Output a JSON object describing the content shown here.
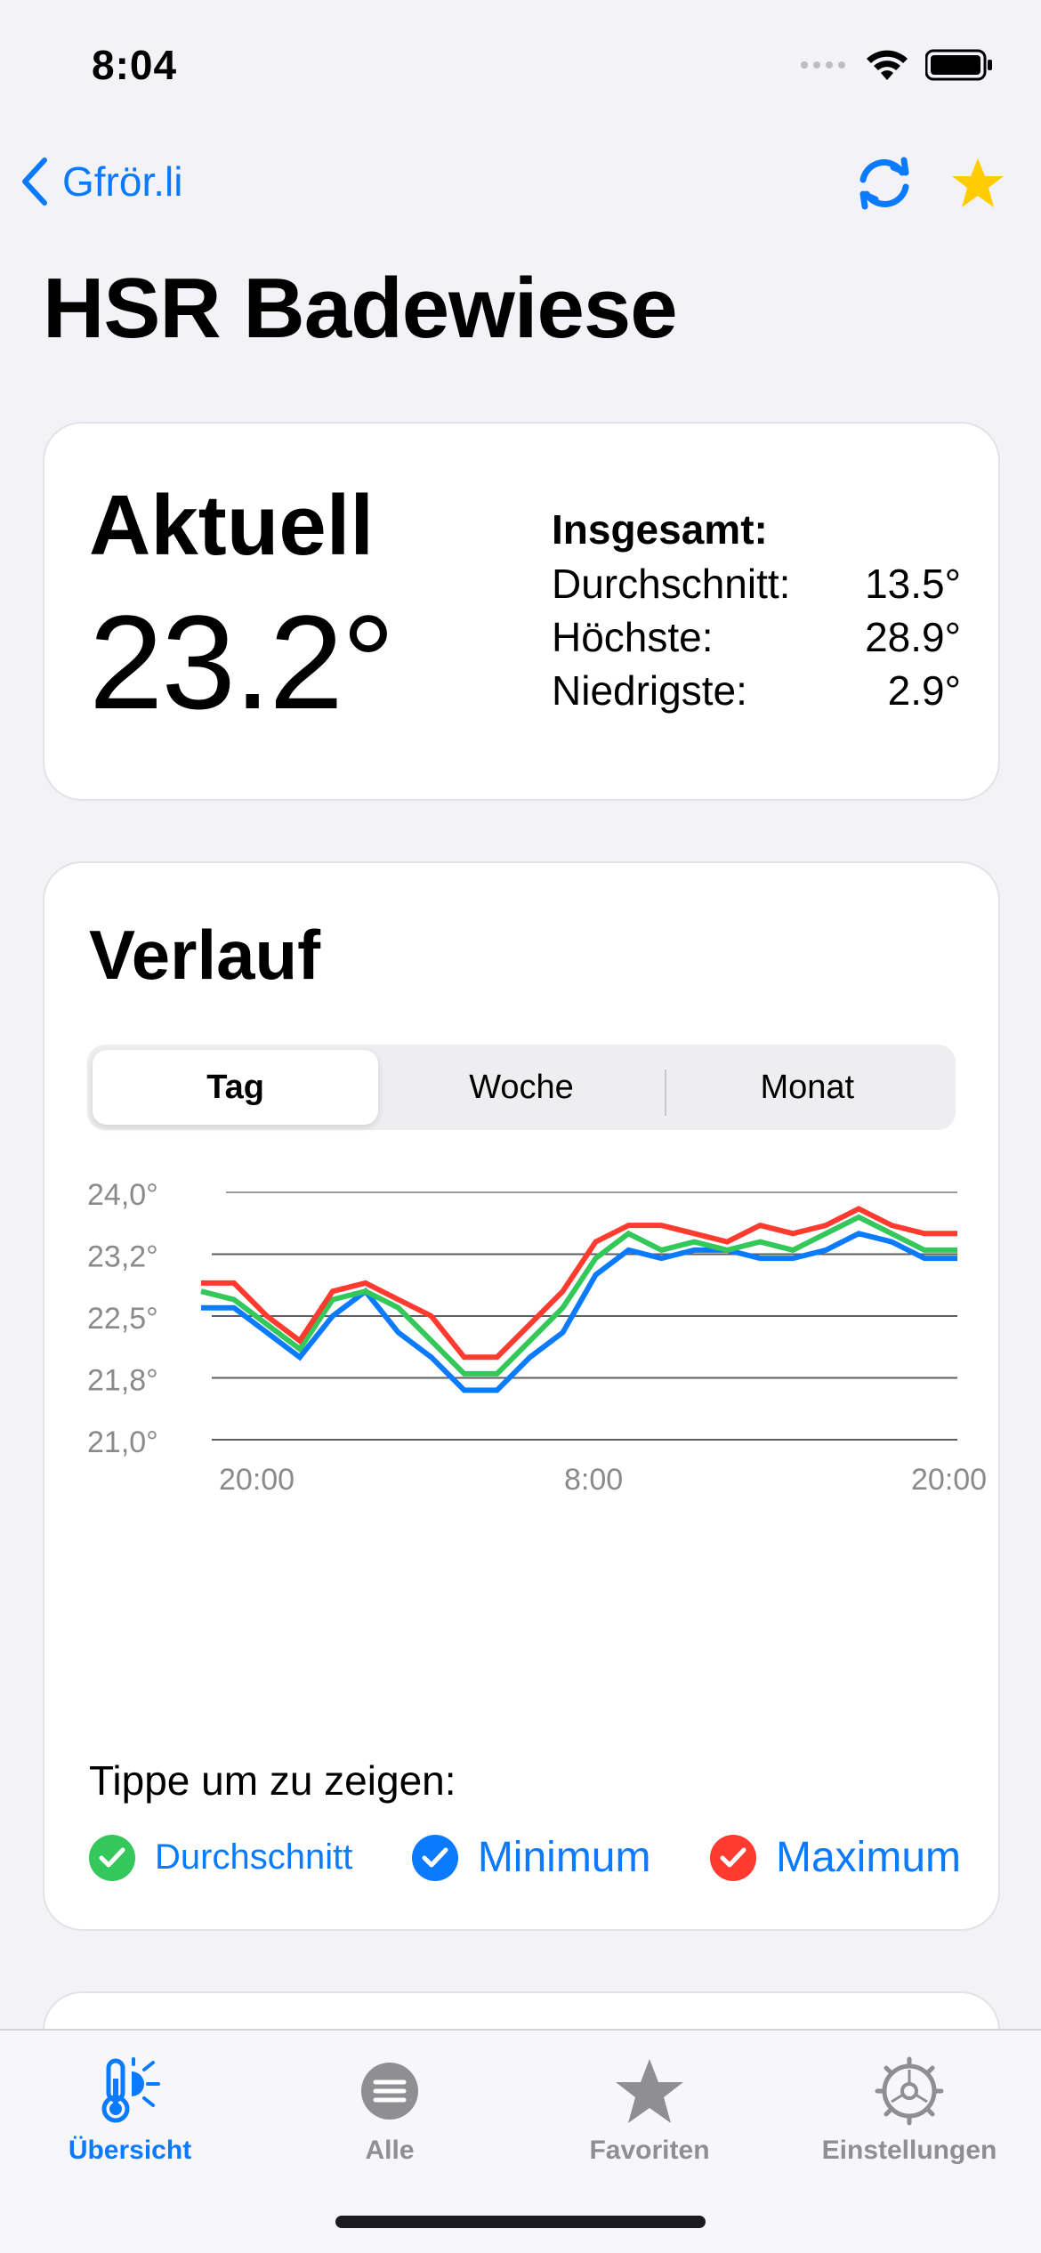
{
  "status_bar": {
    "time": "8:04"
  },
  "nav": {
    "back_label": "Gfrör.li",
    "back_icon": "chevron-left-icon",
    "refresh_icon": "refresh-icon",
    "favorite_icon": "star-icon"
  },
  "page_title": "HSR Badewiese",
  "current": {
    "label": "Aktuell",
    "value": "23.2°",
    "stats_heading": "Insgesamt:",
    "stats": [
      {
        "label": "Durchschnitt:",
        "value": "13.5°"
      },
      {
        "label": "Höchste:",
        "value": "28.9°"
      },
      {
        "label": "Niedrigste:",
        "value": "2.9°"
      }
    ]
  },
  "history": {
    "title": "Verlauf",
    "segments": [
      "Tag",
      "Woche",
      "Monat"
    ],
    "selected_segment": "Tag",
    "tap_hint": "Tippe um zu zeigen:",
    "legend": [
      {
        "label": "Durchschnitt",
        "color": "#34C759",
        "checked": true
      },
      {
        "label": "Minimum",
        "color": "#0A7AFF",
        "checked": true
      },
      {
        "label": "Maximum",
        "color": "#FF3B30",
        "checked": true
      }
    ]
  },
  "chart_data": {
    "type": "line",
    "x_tick_labels": [
      "20:00",
      "8:00",
      "20:00"
    ],
    "y_tick_labels": [
      "24,0°",
      "23,2°",
      "22,5°",
      "21,8°",
      "21,0°"
    ],
    "ylim": [
      21.0,
      24.0
    ],
    "grid": true,
    "series": [
      {
        "name": "Minimum",
        "color": "#0A7AFF",
        "values": [
          22.6,
          22.6,
          22.3,
          22.0,
          22.5,
          22.8,
          22.3,
          22.0,
          21.6,
          21.6,
          22.0,
          22.3,
          23.0,
          23.3,
          23.2,
          23.3,
          23.3,
          23.2,
          23.2,
          23.3,
          23.5,
          23.4,
          23.2,
          23.2
        ]
      },
      {
        "name": "Durchschnitt",
        "color": "#34C759",
        "values": [
          22.8,
          22.7,
          22.4,
          22.1,
          22.7,
          22.8,
          22.6,
          22.2,
          21.8,
          21.8,
          22.2,
          22.6,
          23.2,
          23.5,
          23.3,
          23.4,
          23.3,
          23.4,
          23.3,
          23.5,
          23.7,
          23.5,
          23.3,
          23.3
        ]
      },
      {
        "name": "Maximum",
        "color": "#FF3B30",
        "values": [
          22.9,
          22.9,
          22.5,
          22.2,
          22.8,
          22.9,
          22.7,
          22.5,
          22.0,
          22.0,
          22.4,
          22.8,
          23.4,
          23.6,
          23.6,
          23.5,
          23.4,
          23.6,
          23.5,
          23.6,
          23.8,
          23.6,
          23.5,
          23.5
        ]
      }
    ]
  },
  "tab_bar": {
    "items": [
      {
        "label": "Übersicht",
        "icon": "thermometer-sun-icon",
        "active": true
      },
      {
        "label": "Alle",
        "icon": "list-icon",
        "active": false
      },
      {
        "label": "Favoriten",
        "icon": "star-icon",
        "active": false
      },
      {
        "label": "Einstellungen",
        "icon": "gear-icon",
        "active": false
      }
    ]
  },
  "colors": {
    "accent": "#0A7AFF",
    "favorite": "#FFCC00",
    "background": "#F2F2F7",
    "inactive": "#8E8E93"
  }
}
